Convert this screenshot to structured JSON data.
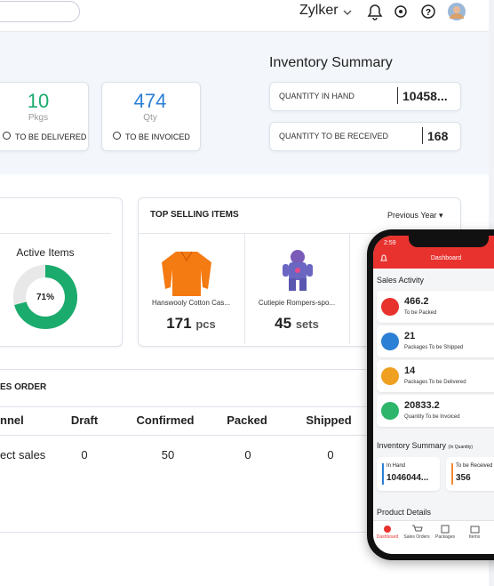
{
  "header": {
    "org": "Zylker"
  },
  "summary_cards": [
    {
      "value": "10",
      "unit": "Pkgs",
      "label": "TO BE DELIVERED"
    },
    {
      "value": "474",
      "unit": "Qty",
      "label": "TO BE INVOICED"
    }
  ],
  "inventory_summary": {
    "title": "Inventory Summary",
    "rows": [
      {
        "label": "QUANTITY IN HAND",
        "value": "10458..."
      },
      {
        "label": "QUANTITY TO BE RECEIVED",
        "value": "168"
      }
    ]
  },
  "active_items": {
    "label": "Active Items",
    "value": 71,
    "value_label": "71%"
  },
  "top_selling": {
    "title": "TOP SELLING ITEMS",
    "period": "Previous Year",
    "items": [
      {
        "name": "Hanswooly Cotton Cas...",
        "qty": "171",
        "unit": "pcs"
      },
      {
        "name": "Cutiepie Rompers-spo...",
        "qty": "45",
        "unit": "sets"
      }
    ]
  },
  "sales_order": {
    "title": "ES ORDER",
    "columns": [
      "nnel",
      "Draft",
      "Confirmed",
      "Packed",
      "Shipped"
    ],
    "rows": [
      [
        "ect sales",
        "0",
        "50",
        "0",
        "0"
      ]
    ]
  },
  "phone": {
    "time": "2:59",
    "title": "Dashboard",
    "sales_activity": {
      "title": "Sales Activity",
      "items": [
        {
          "value": "466.2",
          "label": "To be Packed"
        },
        {
          "value": "21",
          "label": "Packages To be Shipped"
        },
        {
          "value": "14",
          "label": "Packages To be Delivered"
        },
        {
          "value": "20833.2",
          "label": "Quantity To be Invoiced"
        }
      ]
    },
    "inventory": {
      "title": "Inventory Summary",
      "note": "(In Quantity)",
      "boxes": [
        {
          "label": "In Hand",
          "value": "1046044..."
        },
        {
          "label": "To be Received",
          "value": "356"
        }
      ]
    },
    "product_details": "Product Details",
    "tabs": [
      "Dashboard",
      "Sales Orders",
      "Packages",
      "Items"
    ]
  }
}
